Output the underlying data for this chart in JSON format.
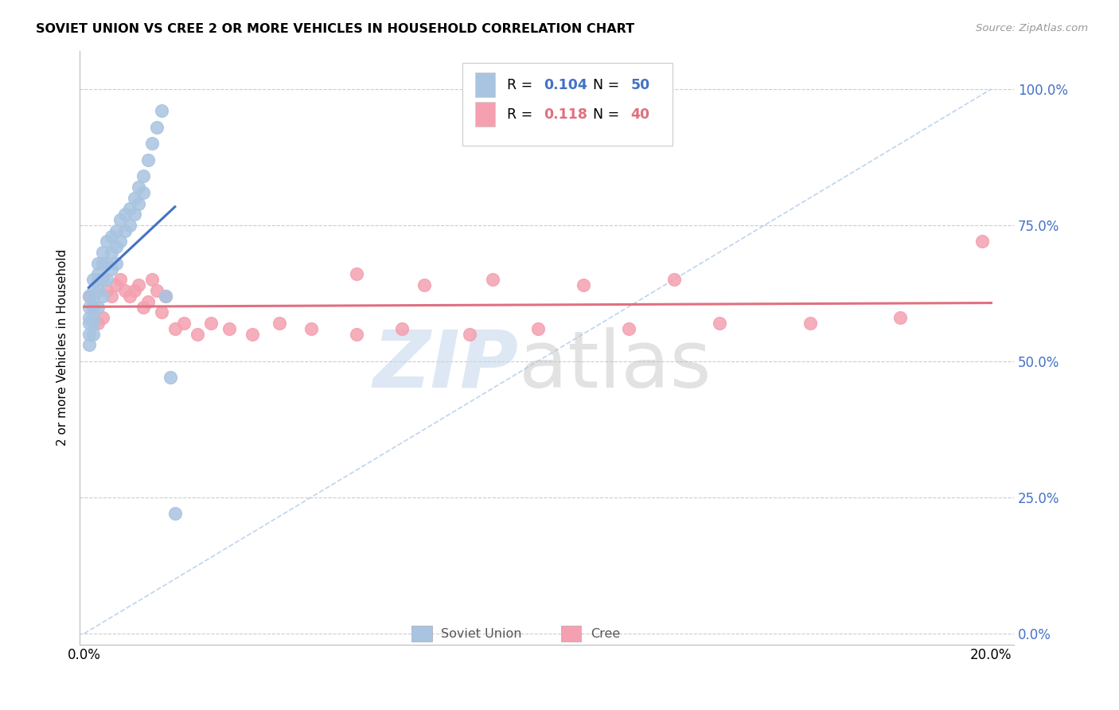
{
  "title": "SOVIET UNION VS CREE 2 OR MORE VEHICLES IN HOUSEHOLD CORRELATION CHART",
  "source": "Source: ZipAtlas.com",
  "ylabel": "2 or more Vehicles in Household",
  "ytick_labels": [
    "0.0%",
    "25.0%",
    "50.0%",
    "75.0%",
    "100.0%"
  ],
  "ytick_values": [
    0.0,
    0.25,
    0.5,
    0.75,
    1.0
  ],
  "xtick_values": [
    0.0,
    0.04,
    0.08,
    0.12,
    0.16,
    0.2
  ],
  "xlim": [
    -0.001,
    0.205
  ],
  "ylim": [
    -0.02,
    1.07
  ],
  "legend_r_soviet": "0.104",
  "legend_n_soviet": "50",
  "legend_r_cree": "0.118",
  "legend_n_cree": "40",
  "soviet_color": "#a8c4e0",
  "cree_color": "#f4a0b0",
  "soviet_line_color": "#4472c4",
  "cree_line_color": "#e07080",
  "diagonal_color": "#b8d0ea",
  "soviet_x": [
    0.001,
    0.001,
    0.001,
    0.001,
    0.001,
    0.001,
    0.002,
    0.002,
    0.002,
    0.002,
    0.002,
    0.002,
    0.002,
    0.003,
    0.003,
    0.003,
    0.003,
    0.003,
    0.004,
    0.004,
    0.004,
    0.004,
    0.005,
    0.005,
    0.005,
    0.006,
    0.006,
    0.006,
    0.007,
    0.007,
    0.007,
    0.008,
    0.008,
    0.009,
    0.009,
    0.01,
    0.01,
    0.011,
    0.011,
    0.012,
    0.012,
    0.013,
    0.013,
    0.014,
    0.015,
    0.016,
    0.017,
    0.018,
    0.019,
    0.02
  ],
  "soviet_y": [
    0.62,
    0.6,
    0.58,
    0.57,
    0.55,
    0.53,
    0.65,
    0.63,
    0.62,
    0.6,
    0.58,
    0.57,
    0.55,
    0.68,
    0.66,
    0.65,
    0.63,
    0.6,
    0.7,
    0.68,
    0.65,
    0.62,
    0.72,
    0.68,
    0.65,
    0.73,
    0.7,
    0.67,
    0.74,
    0.71,
    0.68,
    0.76,
    0.72,
    0.77,
    0.74,
    0.78,
    0.75,
    0.8,
    0.77,
    0.82,
    0.79,
    0.84,
    0.81,
    0.87,
    0.9,
    0.93,
    0.96,
    0.62,
    0.47,
    0.22
  ],
  "cree_x": [
    0.001,
    0.002,
    0.003,
    0.004,
    0.005,
    0.006,
    0.007,
    0.008,
    0.009,
    0.01,
    0.011,
    0.012,
    0.013,
    0.014,
    0.015,
    0.016,
    0.017,
    0.018,
    0.02,
    0.022,
    0.025,
    0.028,
    0.032,
    0.037,
    0.043,
    0.05,
    0.06,
    0.07,
    0.085,
    0.1,
    0.12,
    0.14,
    0.16,
    0.18,
    0.198,
    0.06,
    0.075,
    0.09,
    0.11,
    0.13
  ],
  "cree_y": [
    0.62,
    0.6,
    0.57,
    0.58,
    0.63,
    0.62,
    0.64,
    0.65,
    0.63,
    0.62,
    0.63,
    0.64,
    0.6,
    0.61,
    0.65,
    0.63,
    0.59,
    0.62,
    0.56,
    0.57,
    0.55,
    0.57,
    0.56,
    0.55,
    0.57,
    0.56,
    0.55,
    0.56,
    0.55,
    0.56,
    0.56,
    0.57,
    0.57,
    0.58,
    0.72,
    0.66,
    0.64,
    0.65,
    0.64,
    0.65
  ]
}
